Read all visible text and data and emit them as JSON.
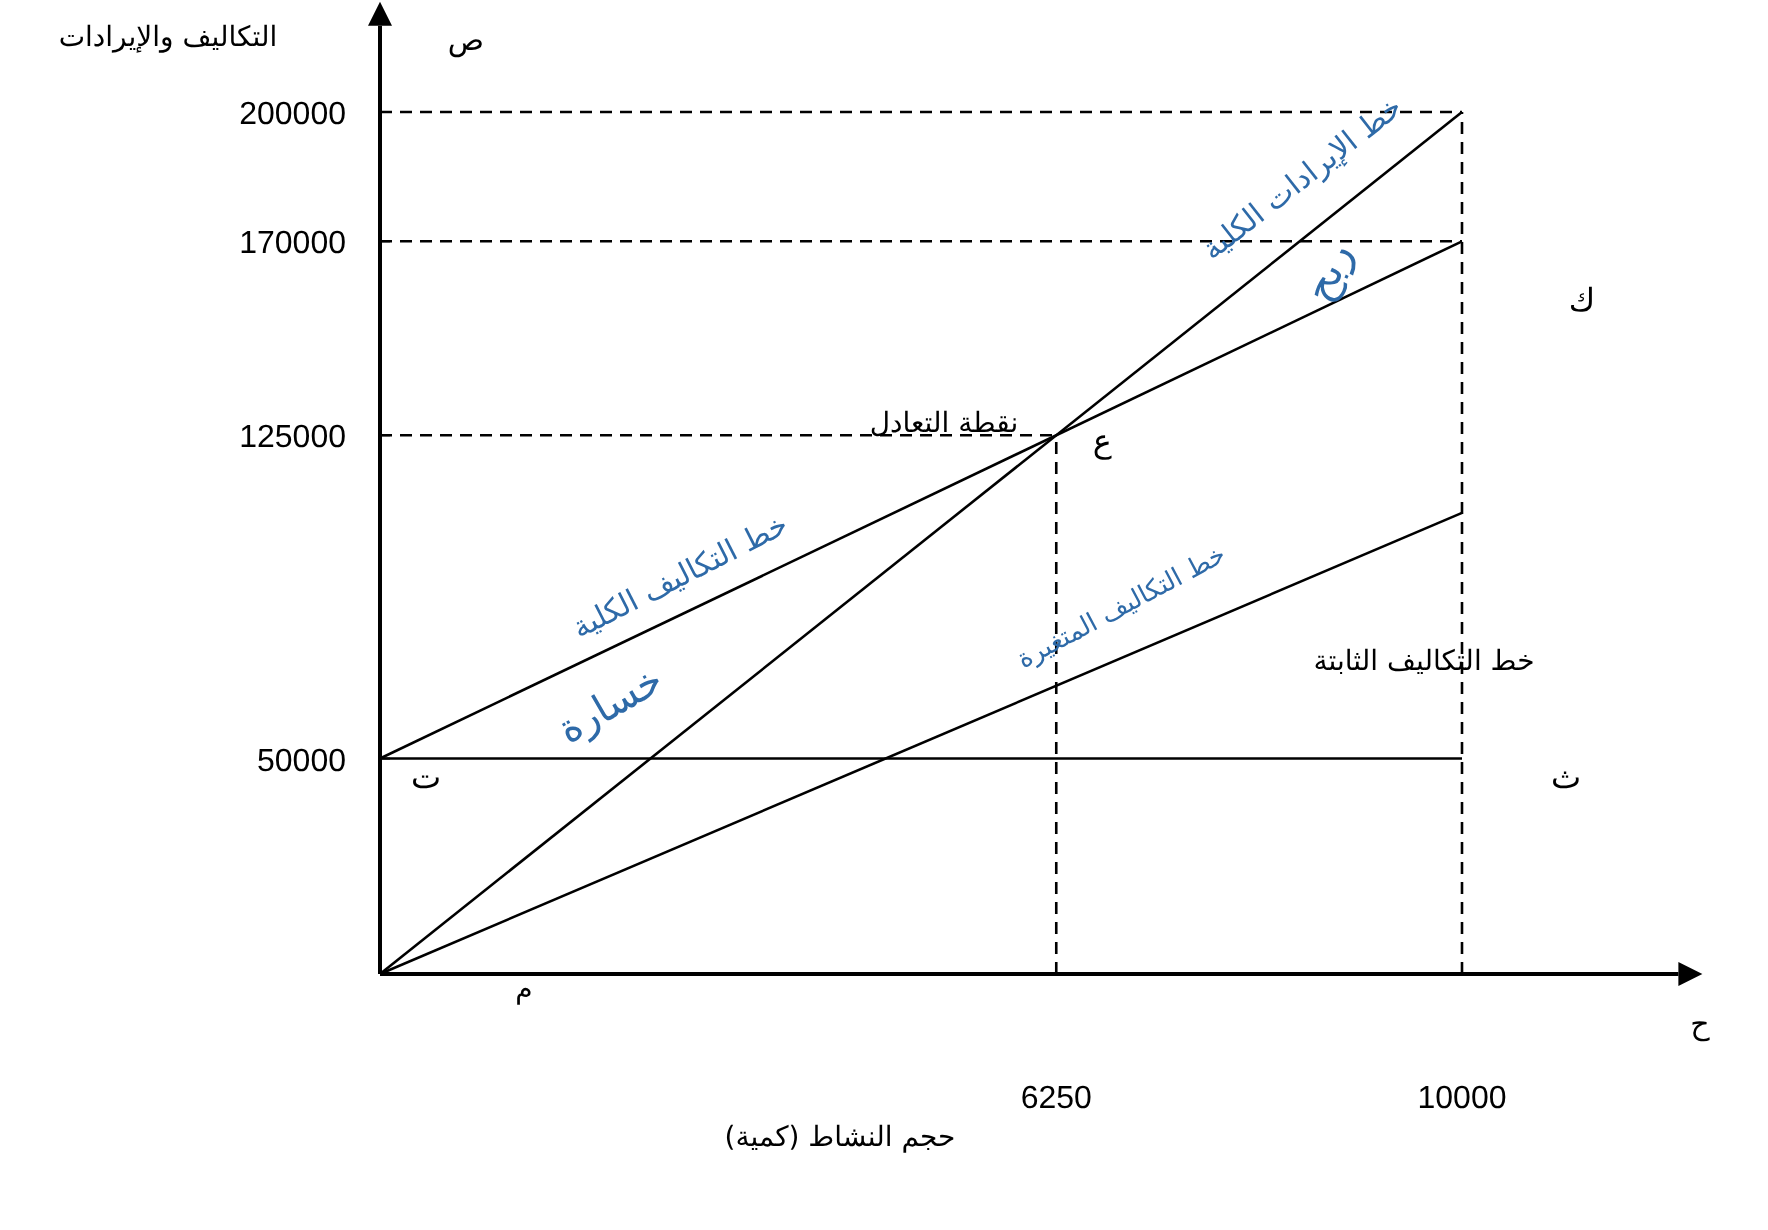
{
  "chart_data": {
    "type": "line",
    "xlabel": "حجم النشاط (كمية)",
    "ylabel": "التكاليف والإيرادات",
    "xlim": [
      0,
      12000
    ],
    "ylim": [
      0,
      220000
    ],
    "xticks": [
      6250,
      10000
    ],
    "yticks": [
      50000,
      125000,
      170000,
      200000
    ],
    "grid": false,
    "marker": "none",
    "line_style": "solid",
    "series": [
      {
        "color": "#000000",
        "x": [
          0,
          10000
        ],
        "values": [
          0,
          200000
        ]
      },
      {
        "color": "#000000",
        "x": [
          0,
          10000
        ],
        "values": [
          50000,
          170000
        ]
      },
      {
        "color": "#000000",
        "x": [
          0,
          10000
        ],
        "values": [
          0,
          107000
        ]
      },
      {
        "color": "#000000",
        "x": [
          0,
          10000
        ],
        "values": [
          50000,
          50000
        ]
      },
      {
        "color": "#000000",
        "x": [
          0,
          10000
        ],
        "values": [
          200000,
          200000
        ],
        "line_style": "dashed"
      },
      {
        "color": "#000000",
        "x": [
          0,
          10000
        ],
        "values": [
          170000,
          170000
        ],
        "line_style": "dashed"
      },
      {
        "color": "#000000",
        "x": [
          0,
          6250
        ],
        "values": [
          125000,
          125000
        ],
        "line_style": "dashed"
      },
      {
        "color": "#000000",
        "x": [
          6250,
          6250
        ],
        "values": [
          0,
          125000
        ],
        "line_style": "dashed"
      },
      {
        "color": "#000000",
        "x": [
          10000,
          10000
        ],
        "values": [
          0,
          200000
        ],
        "line_style": "dashed"
      }
    ],
    "annotations": [
      "ص",
      "ح",
      "خط الإيرادات الكلية",
      "ربح",
      "خط التكاليف الكلية",
      "خسارة",
      "خط التكاليف المتغيرة",
      "خط التكاليف الثابتة",
      "نقطة التعادل",
      {
        "text": "ع",
        "x": 6250,
        "y": 125000
      },
      "م",
      {
        "text": "ت",
        "x": 0,
        "y": 50000
      },
      {
        "text": "ث",
        "x": 10000,
        "y": 50000
      },
      "ك"
    ]
  }
}
